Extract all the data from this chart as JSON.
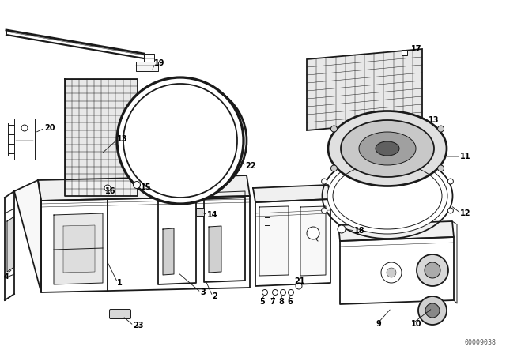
{
  "bg_color": "#ffffff",
  "lc": "#1a1a1a",
  "watermark": "00009038",
  "fig_w": 6.4,
  "fig_h": 4.48,
  "dpi": 100,
  "lw1": 1.3,
  "lw2": 0.7,
  "lw3": 0.35,
  "label_fs": 7.0
}
